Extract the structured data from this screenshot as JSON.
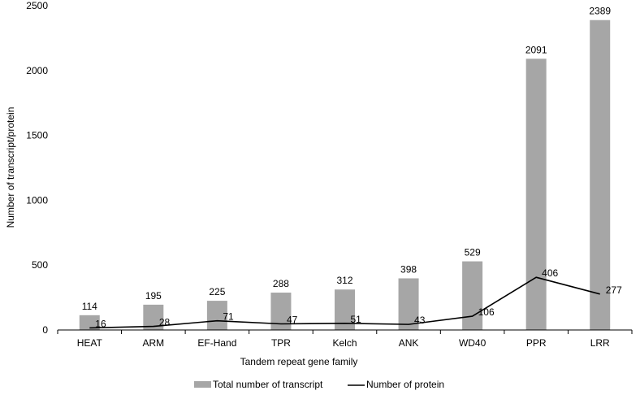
{
  "chart_data": {
    "type": "bar",
    "xlabel": "Tandem repeat gene family",
    "ylabel": "Number of transcript/protein",
    "ylim": [
      0,
      2500
    ],
    "yticks": [
      0,
      500,
      1000,
      1500,
      2000,
      2500
    ],
    "categories": [
      "HEAT",
      "ARM",
      "EF-Hand",
      "TPR",
      "Kelch",
      "ANK",
      "WD40",
      "PPR",
      "LRR"
    ],
    "series": [
      {
        "name": "Total number of transcript",
        "kind": "bar",
        "color": "#a6a6a6",
        "values": [
          114,
          195,
          225,
          288,
          312,
          398,
          529,
          2091,
          2389
        ]
      },
      {
        "name": "Number of protein",
        "kind": "line",
        "color": "#000000",
        "values": [
          16,
          28,
          71,
          47,
          51,
          43,
          106,
          406,
          277
        ]
      }
    ],
    "legend_position": "bottom",
    "grid": false
  }
}
